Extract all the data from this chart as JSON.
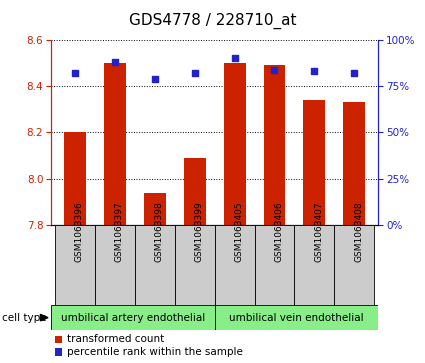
{
  "title": "GDS4778 / 228710_at",
  "samples": [
    "GSM1063396",
    "GSM1063397",
    "GSM1063398",
    "GSM1063399",
    "GSM1063405",
    "GSM1063406",
    "GSM1063407",
    "GSM1063408"
  ],
  "transformed_count": [
    8.2,
    8.5,
    7.94,
    8.09,
    8.5,
    8.49,
    8.34,
    8.33
  ],
  "percentile_rank": [
    82,
    88,
    79,
    82,
    90,
    84,
    83,
    82
  ],
  "ylim_left": [
    7.8,
    8.6
  ],
  "ylim_right": [
    0,
    100
  ],
  "yticks_left": [
    7.8,
    8.0,
    8.2,
    8.4,
    8.6
  ],
  "yticks_right": [
    0,
    25,
    50,
    75,
    100
  ],
  "bar_color": "#cc2200",
  "dot_color": "#2222cc",
  "bar_width": 0.55,
  "group1_label": "umbilical artery endothelial",
  "group2_label": "umbilical vein endothelial",
  "group1_count": 4,
  "group2_count": 4,
  "cell_type_label": "cell type",
  "legend_bar_label": "transformed count",
  "legend_dot_label": "percentile rank within the sample",
  "plot_bg": "#ffffff",
  "tick_area_bg": "#cccccc",
  "group_bg": "#88ee88",
  "title_fontsize": 11,
  "tick_fontsize": 7.5,
  "sample_fontsize": 6.5,
  "label_fontsize": 8
}
